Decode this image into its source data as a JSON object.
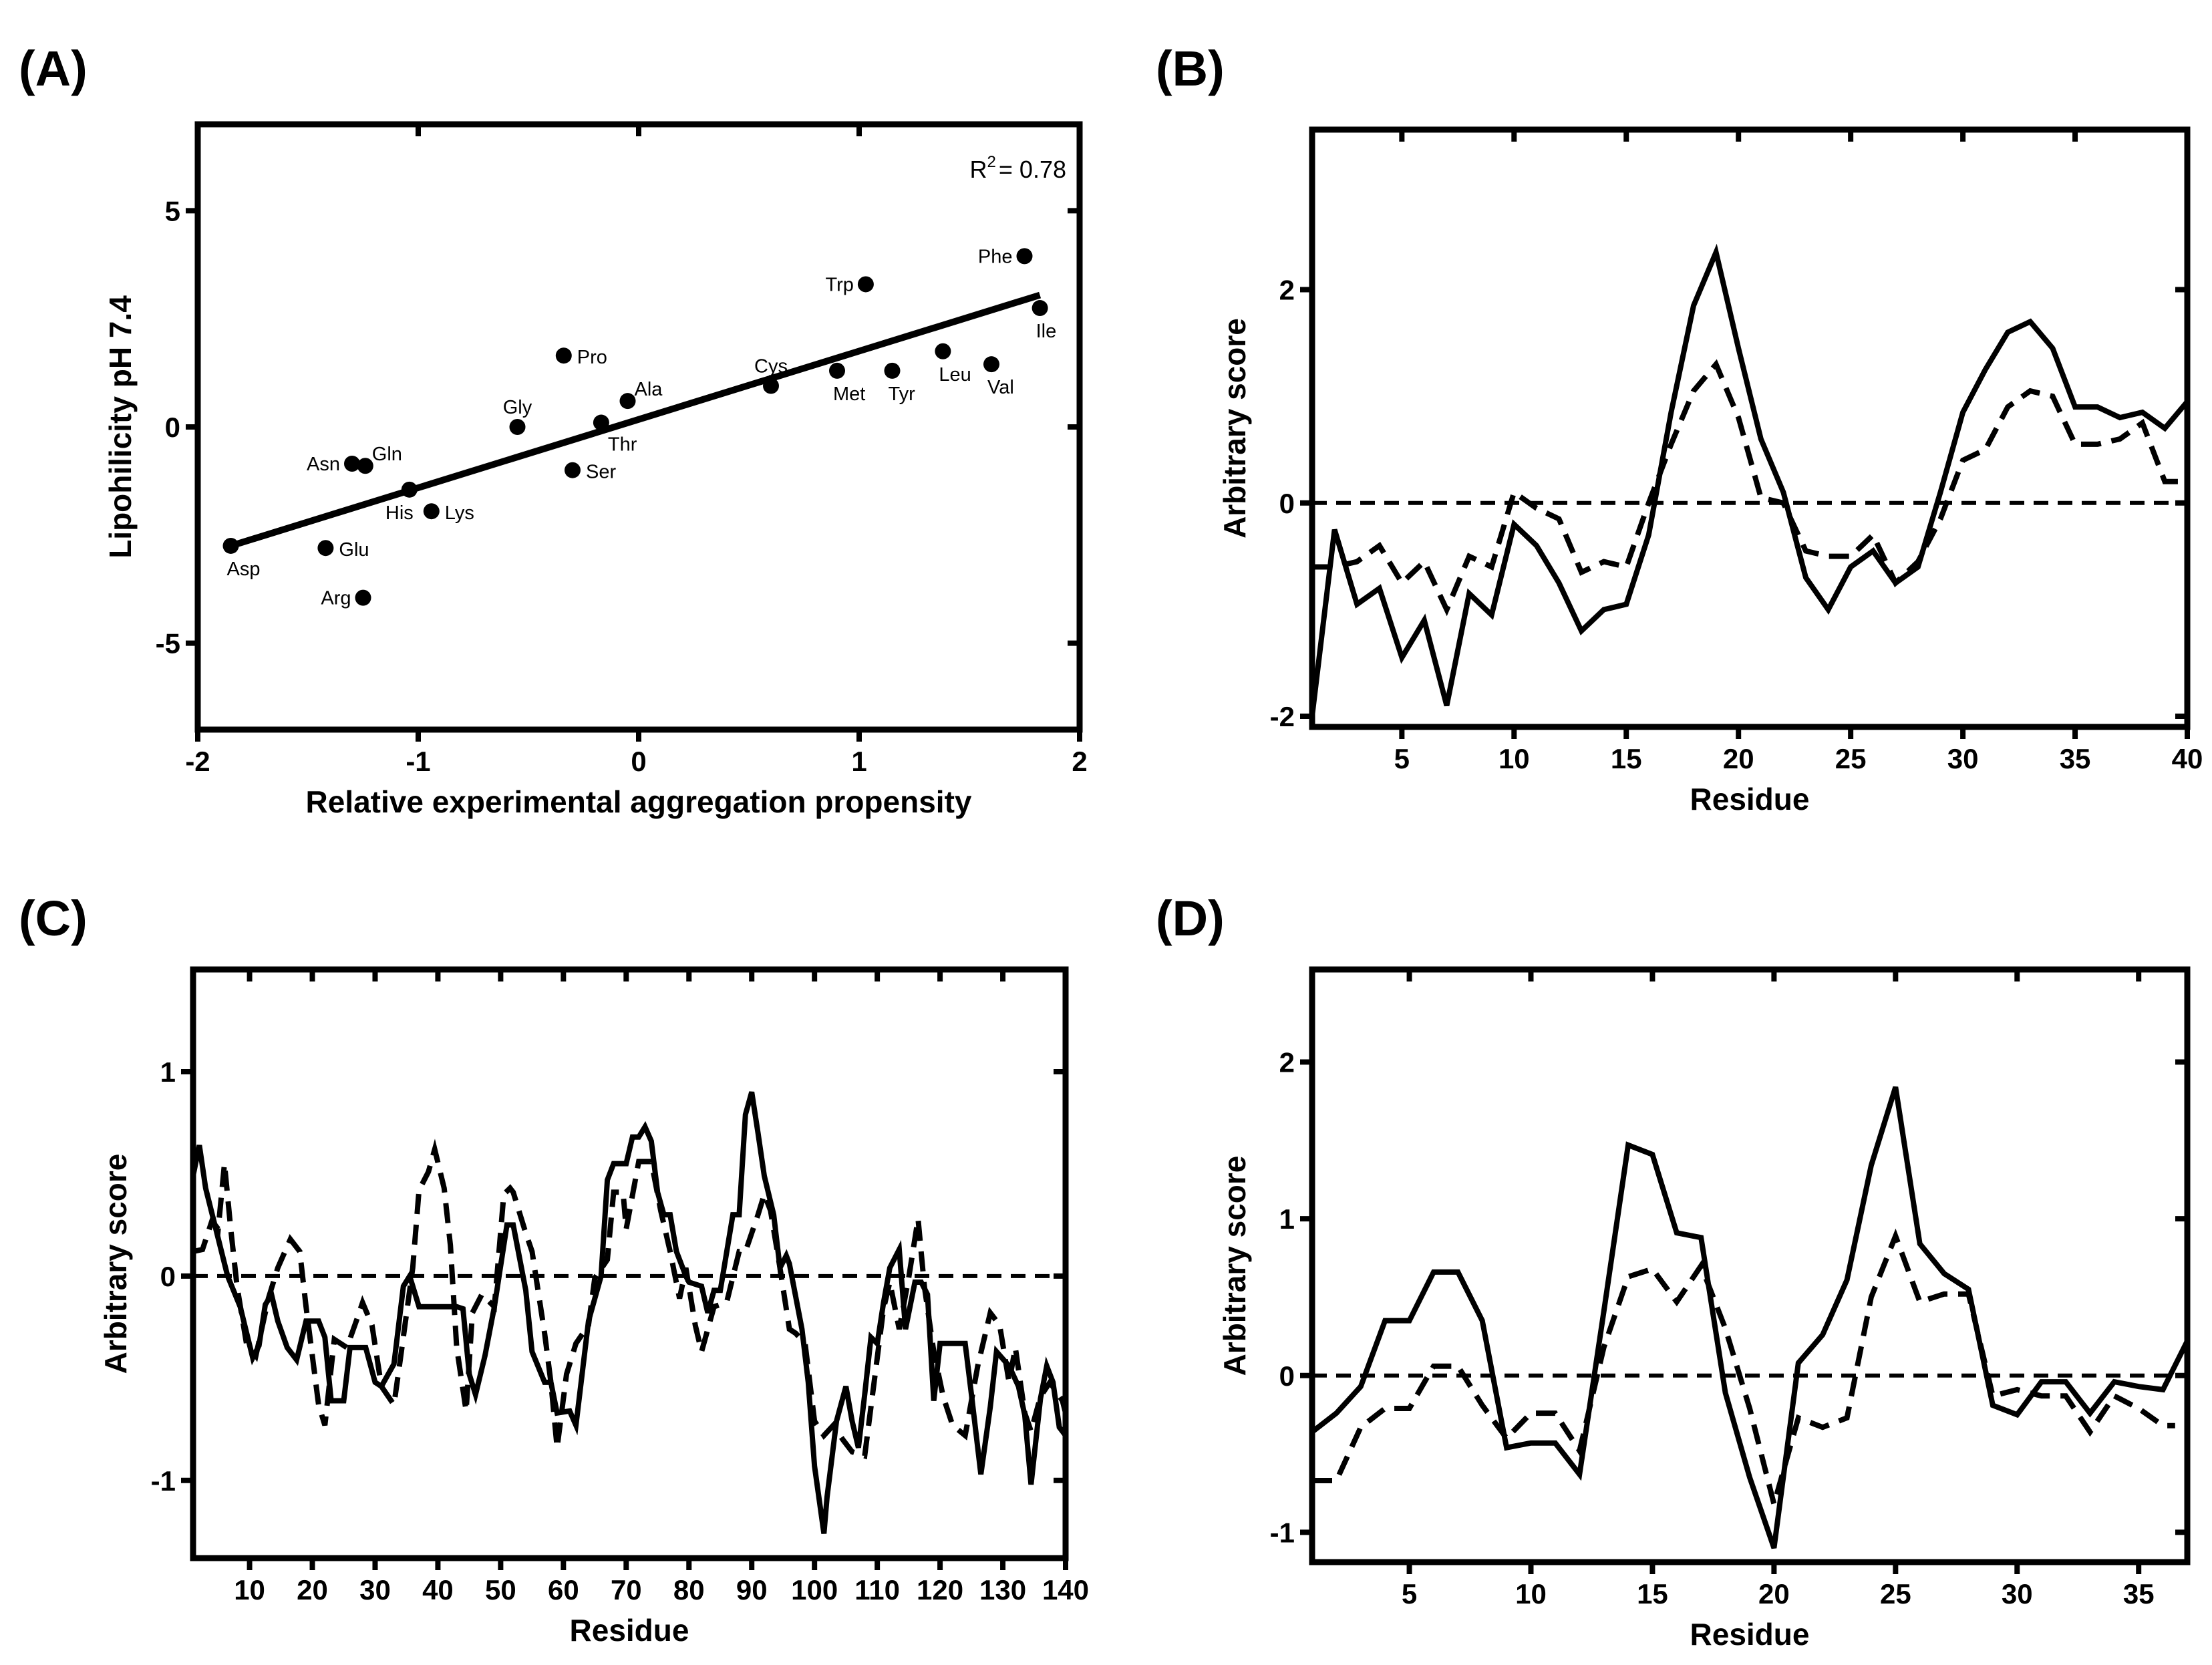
{
  "chart_data": [
    {
      "panel_label": "(A)",
      "type": "scatter",
      "xlabel": "Relative experimental aggregation propensity",
      "ylabel": "Lipohilicity pH 7.4",
      "xlim": [
        -2,
        2
      ],
      "ylim": [
        -7,
        7
      ],
      "xticks": [
        "-2",
        "-1",
        "0",
        "1",
        "2"
      ],
      "yticks": [
        "-5",
        "0",
        "5"
      ],
      "grid": false,
      "annotation": {
        "symbol": "R",
        "superscript": "2",
        "text": "= 0.78"
      },
      "fit_line": {
        "x": [
          -1.85,
          1.82
        ],
        "y": [
          -2.75,
          3.05
        ]
      },
      "points": [
        {
          "label": "Asp",
          "x": -1.85,
          "y": -2.75,
          "label_pos": "below"
        },
        {
          "label": "Glu",
          "x": -1.42,
          "y": -2.8,
          "label_pos": "right"
        },
        {
          "label": "Arg",
          "x": -1.25,
          "y": -3.95,
          "label_pos": "left"
        },
        {
          "label": "Asn",
          "x": -1.3,
          "y": -0.85,
          "label_pos": "left"
        },
        {
          "label": "Gln",
          "x": -1.24,
          "y": -0.9,
          "label_pos": "above-right"
        },
        {
          "label": "His",
          "x": -1.04,
          "y": -1.45,
          "label_pos": "below-left"
        },
        {
          "label": "Lys",
          "x": -0.94,
          "y": -1.95,
          "label_pos": "right"
        },
        {
          "label": "Gly",
          "x": -0.55,
          "y": 0.0,
          "label_pos": "above"
        },
        {
          "label": "Pro",
          "x": -0.34,
          "y": 1.65,
          "label_pos": "right"
        },
        {
          "label": "Ser",
          "x": -0.3,
          "y": -1.0,
          "label_pos": "right"
        },
        {
          "label": "Thr",
          "x": -0.17,
          "y": 0.1,
          "label_pos": "below-right"
        },
        {
          "label": "Ala",
          "x": -0.05,
          "y": 0.6,
          "label_pos": "above-right"
        },
        {
          "label": "Cys",
          "x": 0.6,
          "y": 0.95,
          "label_pos": "above"
        },
        {
          "label": "Met",
          "x": 0.9,
          "y": 1.3,
          "label_pos": "below"
        },
        {
          "label": "Trp",
          "x": 1.03,
          "y": 3.3,
          "label_pos": "left"
        },
        {
          "label": "Tyr",
          "x": 1.15,
          "y": 1.3,
          "label_pos": "below"
        },
        {
          "label": "Leu",
          "x": 1.38,
          "y": 1.75,
          "label_pos": "below"
        },
        {
          "label": "Val",
          "x": 1.6,
          "y": 1.45,
          "label_pos": "below"
        },
        {
          "label": "Phe",
          "x": 1.75,
          "y": 3.95,
          "label_pos": "left"
        },
        {
          "label": "Ile",
          "x": 1.82,
          "y": 2.75,
          "label_pos": "below"
        }
      ]
    },
    {
      "panel_label": "(B)",
      "type": "line",
      "xlabel": "Residue",
      "ylabel": "Arbitrary score",
      "xlim": [
        1,
        40
      ],
      "ylim": [
        -2.1,
        3.5
      ],
      "xticks": [
        "5",
        "10",
        "15",
        "20",
        "25",
        "30",
        "35",
        "40"
      ],
      "yticks": [
        "-2",
        "0",
        "2"
      ],
      "reference_line_y": 0,
      "series": [
        {
          "style": "solid",
          "x": [
            1,
            2,
            3,
            4,
            5,
            6,
            7,
            8,
            9,
            10,
            11,
            12,
            13,
            14,
            15,
            16,
            17,
            18,
            19,
            20,
            21,
            22,
            23,
            24,
            25,
            26,
            27,
            28,
            29,
            30,
            31,
            32,
            33,
            34,
            35,
            36,
            37,
            38,
            39,
            40
          ],
          "y": [
            -2.0,
            -0.25,
            -0.95,
            -0.8,
            -1.45,
            -1.1,
            -1.9,
            -0.85,
            -1.05,
            -0.2,
            -0.4,
            -0.75,
            -1.2,
            -1.0,
            -0.95,
            -0.3,
            0.85,
            1.85,
            2.35,
            1.45,
            0.6,
            0.1,
            -0.7,
            -1.0,
            -0.6,
            -0.45,
            -0.75,
            -0.6,
            0.1,
            0.85,
            1.25,
            1.6,
            1.7,
            1.45,
            0.9,
            0.9,
            0.8,
            0.85,
            0.7,
            0.95
          ]
        },
        {
          "style": "dashed",
          "x": [
            1,
            2,
            3,
            4,
            5,
            6,
            7,
            8,
            9,
            10,
            11,
            12,
            13,
            14,
            15,
            16,
            17,
            18,
            19,
            20,
            21,
            22,
            23,
            24,
            25,
            26,
            27,
            28,
            29,
            30,
            31,
            32,
            33,
            34,
            35,
            36,
            37,
            38,
            39,
            40
          ],
          "y": [
            -0.6,
            -0.6,
            -0.55,
            -0.4,
            -0.75,
            -0.55,
            -1.0,
            -0.5,
            -0.6,
            0.1,
            -0.05,
            -0.15,
            -0.65,
            -0.55,
            -0.6,
            0.0,
            0.55,
            1.05,
            1.3,
            0.8,
            0.05,
            0.0,
            -0.45,
            -0.5,
            -0.5,
            -0.3,
            -0.75,
            -0.55,
            -0.15,
            0.4,
            0.5,
            0.9,
            1.05,
            1.0,
            0.55,
            0.55,
            0.6,
            0.75,
            0.2,
            0.2
          ]
        }
      ]
    },
    {
      "panel_label": "(C)",
      "type": "line",
      "xlabel": "Residue",
      "ylabel": "Arbitrary score",
      "xlim": [
        1,
        140
      ],
      "ylim": [
        -1.38,
        1.5
      ],
      "xticks": [
        "10",
        "20",
        "30",
        "40",
        "50",
        "60",
        "70",
        "80",
        "90",
        "100",
        "110",
        "120",
        "130",
        "140"
      ],
      "yticks": [
        "-1",
        "0",
        "1"
      ],
      "reference_line_y": 0,
      "series": [
        {
          "style": "solid",
          "x": [
            1,
            2,
            3,
            6.5,
            8.5,
            10.5,
            11.5,
            12.5,
            13.5,
            14.5,
            16,
            17.5,
            19,
            21,
            22,
            23,
            25,
            26,
            28.5,
            30,
            31,
            33,
            34.5,
            35.5,
            37,
            43,
            44,
            45,
            46,
            47.5,
            49,
            51,
            52,
            54,
            55,
            57,
            58,
            59,
            61,
            62,
            64,
            66,
            67,
            68,
            70,
            71,
            72,
            73,
            74,
            75,
            76,
            77,
            78,
            79.5,
            80,
            82,
            83,
            84,
            85,
            87,
            88,
            89,
            90,
            91,
            92,
            93.5,
            94.5,
            95.5,
            96,
            97.5,
            98,
            99,
            100,
            101.5,
            102,
            103.5,
            105,
            106,
            107,
            108,
            109,
            110,
            111,
            112,
            113.5,
            114.5,
            116,
            117,
            118,
            119,
            120,
            124,
            125,
            126.5,
            128,
            129,
            131,
            132.5,
            133.5,
            134.5,
            136,
            137,
            138,
            139,
            140
          ],
          "y": [
            0.49,
            0.64,
            0.43,
            0.0,
            -0.15,
            -0.4,
            -0.34,
            -0.14,
            -0.09,
            -0.22,
            -0.35,
            -0.41,
            -0.22,
            -0.22,
            -0.3,
            -0.61,
            -0.61,
            -0.35,
            -0.35,
            -0.52,
            -0.54,
            -0.43,
            -0.05,
            0.0,
            -0.15,
            -0.15,
            -0.16,
            -0.48,
            -0.58,
            -0.39,
            -0.15,
            0.25,
            0.25,
            -0.07,
            -0.37,
            -0.52,
            -0.52,
            -0.67,
            -0.66,
            -0.73,
            -0.22,
            0.0,
            0.47,
            0.55,
            0.55,
            0.68,
            0.68,
            0.73,
            0.66,
            0.41,
            0.3,
            0.3,
            0.12,
            0.0,
            -0.03,
            -0.05,
            -0.18,
            -0.07,
            -0.07,
            0.3,
            0.3,
            0.79,
            0.9,
            0.7,
            0.49,
            0.3,
            0.04,
            0.1,
            0.06,
            -0.18,
            -0.26,
            -0.52,
            -0.93,
            -1.26,
            -1.08,
            -0.71,
            -0.54,
            -0.71,
            -0.84,
            -0.58,
            -0.3,
            -0.33,
            -0.13,
            0.04,
            0.13,
            -0.26,
            -0.03,
            -0.03,
            -0.09,
            -0.61,
            -0.33,
            -0.33,
            -0.58,
            -0.97,
            -0.64,
            -0.37,
            -0.44,
            -0.54,
            -0.68,
            -1.02,
            -0.6,
            -0.44,
            -0.52,
            -0.74,
            -0.78
          ]
        },
        {
          "style": "dashed",
          "x": [
            1,
            2.5,
            4,
            5,
            6,
            7,
            8,
            9.5,
            11,
            13,
            14.5,
            16.5,
            18,
            19,
            21,
            22,
            23.5,
            25.5,
            27,
            28,
            29.5,
            31,
            33,
            34,
            36,
            37,
            38.5,
            39.5,
            41,
            42,
            43,
            44.5,
            45.5,
            47,
            49,
            50.5,
            51.5,
            52,
            54,
            55,
            57,
            58,
            59,
            60.5,
            62,
            64,
            65,
            67,
            68,
            69.5,
            70,
            72,
            74,
            75.5,
            77,
            78.5,
            79.5,
            81,
            82,
            84,
            86,
            88,
            89,
            91,
            92,
            93,
            94.5,
            96,
            97,
            98.5,
            100,
            101.5,
            103,
            104.5,
            106,
            108,
            109.5,
            111,
            112,
            113.5,
            115,
            116.5,
            117.5,
            119,
            120.5,
            122,
            124,
            126,
            128,
            129.5,
            131,
            132,
            133.5,
            134.5,
            136,
            137.5,
            139.5,
            140
          ],
          "y": [
            0.12,
            0.13,
            0.27,
            0.23,
            0.55,
            0.23,
            -0.05,
            -0.33,
            -0.39,
            -0.11,
            0.04,
            0.18,
            0.12,
            -0.15,
            -0.63,
            -0.73,
            -0.31,
            -0.35,
            -0.22,
            -0.13,
            -0.24,
            -0.54,
            -0.63,
            -0.41,
            0.04,
            0.42,
            0.51,
            0.62,
            0.43,
            0.15,
            -0.35,
            -0.66,
            -0.18,
            -0.09,
            -0.15,
            0.4,
            0.43,
            0.41,
            0.21,
            0.12,
            -0.28,
            -0.52,
            -0.84,
            -0.48,
            -0.33,
            -0.24,
            -0.01,
            0.08,
            0.41,
            0.41,
            0.23,
            0.56,
            0.56,
            0.32,
            0.12,
            -0.11,
            0.04,
            -0.24,
            -0.37,
            -0.15,
            -0.13,
            0.12,
            0.12,
            0.3,
            0.4,
            0.32,
            0.04,
            -0.26,
            -0.28,
            -0.33,
            -0.71,
            -0.78,
            -0.73,
            -0.8,
            -0.86,
            -0.88,
            -0.52,
            -0.16,
            -0.03,
            -0.26,
            -0.01,
            0.28,
            -0.05,
            -0.37,
            -0.59,
            -0.73,
            -0.78,
            -0.44,
            -0.18,
            -0.24,
            -0.52,
            -0.35,
            -0.67,
            -0.76,
            -0.59,
            -0.52,
            -0.61,
            -0.67
          ]
        }
      ]
    },
    {
      "panel_label": "(D)",
      "type": "line",
      "xlabel": "Residue",
      "ylabel": "Arbitrary score",
      "xlim": [
        1,
        37
      ],
      "ylim": [
        -1.19,
        2.59
      ],
      "xticks": [
        "5",
        "10",
        "15",
        "20",
        "25",
        "30",
        "35"
      ],
      "yticks": [
        "-1",
        "0",
        "1",
        "2"
      ],
      "reference_line_y": 0,
      "series": [
        {
          "style": "solid",
          "x": [
            1,
            2,
            3,
            4,
            5,
            6,
            7,
            8,
            9,
            10,
            11,
            12,
            13,
            14,
            15,
            16,
            17,
            18,
            19,
            20,
            21,
            22,
            23,
            24,
            25,
            26,
            27,
            28,
            29,
            30,
            31,
            32,
            33,
            34,
            35,
            36,
            37
          ],
          "y": [
            -0.36,
            -0.24,
            -0.07,
            0.35,
            0.35,
            0.66,
            0.66,
            0.35,
            -0.46,
            -0.43,
            -0.43,
            -0.63,
            0.41,
            1.47,
            1.41,
            0.91,
            0.88,
            -0.11,
            -0.65,
            -1.1,
            0.08,
            0.26,
            0.61,
            1.34,
            1.84,
            0.84,
            0.65,
            0.55,
            -0.19,
            -0.25,
            -0.04,
            -0.04,
            -0.24,
            -0.04,
            -0.07,
            -0.09,
            0.22
          ]
        },
        {
          "style": "dashed",
          "x": [
            1,
            2,
            3,
            4,
            5,
            6,
            7,
            8,
            9,
            10,
            11,
            12,
            13,
            14,
            15,
            16,
            17,
            18,
            19,
            20,
            21,
            22,
            23,
            24,
            25,
            26,
            27,
            28,
            29,
            30,
            31,
            32,
            33,
            34,
            35,
            36,
            36.5
          ],
          "y": [
            -0.67,
            -0.67,
            -0.33,
            -0.21,
            -0.21,
            0.06,
            0.06,
            -0.19,
            -0.4,
            -0.24,
            -0.24,
            -0.48,
            0.18,
            0.63,
            0.68,
            0.47,
            0.7,
            0.3,
            -0.21,
            -0.82,
            -0.27,
            -0.33,
            -0.27,
            0.5,
            0.89,
            0.47,
            0.52,
            0.52,
            -0.13,
            -0.09,
            -0.13,
            -0.13,
            -0.36,
            -0.13,
            -0.21,
            -0.32,
            -0.32
          ]
        }
      ]
    }
  ]
}
